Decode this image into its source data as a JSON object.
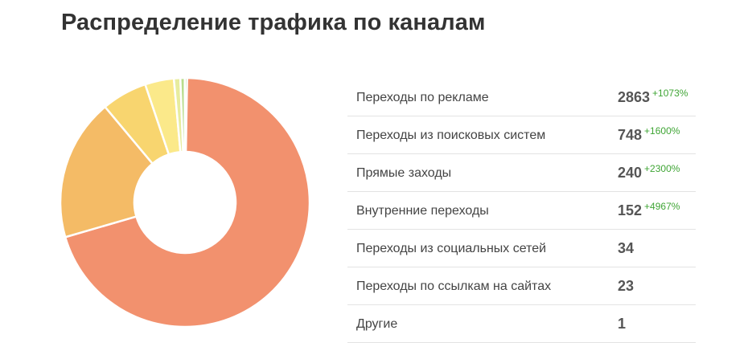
{
  "title": "Распределение трафика по каналам",
  "colors": {
    "ads": "#f2916e",
    "search": "#f4bb66",
    "direct": "#f8d56f",
    "internal": "#fbe98a",
    "social": "#e7ec9e",
    "links": "#b8dc8c",
    "other": "#9ecf7e"
  },
  "chart_data": {
    "type": "pie",
    "donut": true,
    "categories": [
      "Переходы по рекламе",
      "Переходы из поисковых систем",
      "Прямые заходы",
      "Внутренние переходы",
      "Переходы из социальных сетей",
      "Переходы по ссылкам на сайтах",
      "Другие"
    ],
    "values": [
      2863,
      748,
      240,
      152,
      34,
      23,
      1
    ],
    "changes": [
      "+1073%",
      "+1600%",
      "+2300%",
      "+4967%",
      "",
      "",
      ""
    ]
  },
  "rows": [
    {
      "label": "Переходы по рекламе",
      "value": "2863",
      "change": "+1073%"
    },
    {
      "label": "Переходы из поисковых систем",
      "value": "748",
      "change": "+1600%"
    },
    {
      "label": "Прямые заходы",
      "value": "240",
      "change": "+2300%"
    },
    {
      "label": "Внутренние переходы",
      "value": "152",
      "change": "+4967%"
    },
    {
      "label": "Переходы из социальных сетей",
      "value": "34",
      "change": ""
    },
    {
      "label": "Переходы по ссылкам на сайтах",
      "value": "23",
      "change": ""
    },
    {
      "label": "Другие",
      "value": "1",
      "change": ""
    }
  ]
}
